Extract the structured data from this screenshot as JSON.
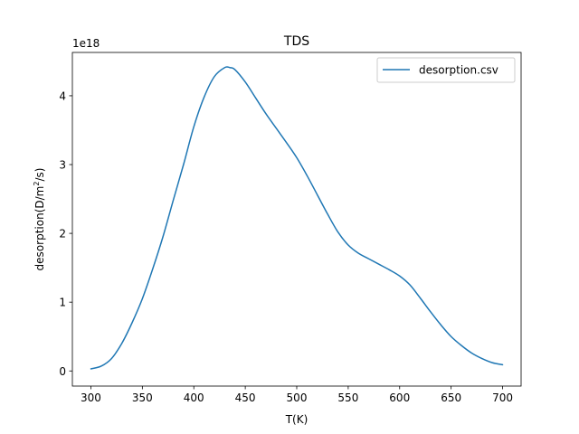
{
  "chart_data": {
    "type": "line",
    "title": "TDS",
    "xlabel": "T(K)",
    "ylabel": "desorption(D/m²/s)",
    "ylabel_parts": {
      "base": "desorption(D/m",
      "sup": "2",
      "tail": "/s)"
    },
    "y_offset_label": "1e18",
    "xlim": [
      282,
      718
    ],
    "ylim": [
      -0.22,
      4.63
    ],
    "x_ticks": [
      300,
      350,
      400,
      450,
      500,
      550,
      600,
      650,
      700
    ],
    "y_ticks": [
      0,
      1,
      2,
      3,
      4
    ],
    "grid": false,
    "legend_position": "top-right",
    "series": [
      {
        "name": "desorption.csv",
        "color": "#1f77b4",
        "x": [
          300,
          310,
          320,
          330,
          340,
          350,
          360,
          370,
          380,
          390,
          400,
          410,
          420,
          430,
          435,
          440,
          450,
          460,
          470,
          480,
          490,
          500,
          510,
          520,
          530,
          540,
          550,
          560,
          570,
          580,
          590,
          600,
          610,
          620,
          630,
          640,
          650,
          660,
          670,
          680,
          690,
          700
        ],
        "y": [
          0.03,
          0.07,
          0.18,
          0.4,
          0.7,
          1.05,
          1.48,
          1.95,
          2.48,
          3.0,
          3.55,
          3.98,
          4.28,
          4.41,
          4.41,
          4.38,
          4.2,
          3.97,
          3.74,
          3.53,
          3.32,
          3.1,
          2.84,
          2.56,
          2.28,
          2.02,
          1.83,
          1.71,
          1.63,
          1.55,
          1.47,
          1.38,
          1.25,
          1.06,
          0.86,
          0.67,
          0.5,
          0.37,
          0.26,
          0.18,
          0.12,
          0.09
        ]
      }
    ]
  }
}
